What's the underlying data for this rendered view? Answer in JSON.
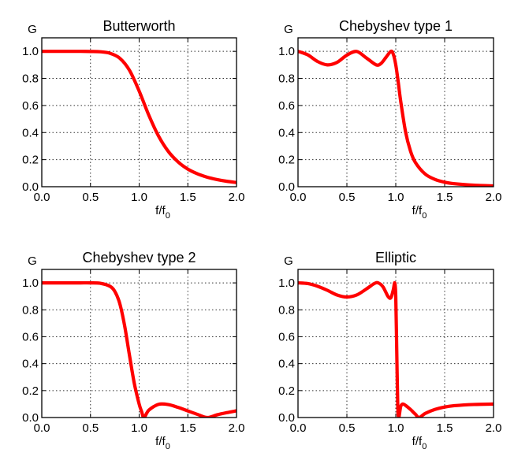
{
  "colors": {
    "curve": "#ff0000",
    "axes": "#000000",
    "grid": "#000000"
  },
  "chart_data": [
    {
      "type": "line",
      "title": "Butterworth",
      "xlabel": "f/f",
      "xlabel_sub": "0",
      "ylabel": "G",
      "xlim": [
        0,
        2.0
      ],
      "ylim": [
        0,
        1.1
      ],
      "grid": true,
      "linestyle": "dotted grid",
      "xticks": [
        "0.0",
        "0.5",
        "1.0",
        "1.5",
        "2.0"
      ],
      "yticks": [
        "0.0",
        "0.2",
        "0.4",
        "0.6",
        "0.8",
        "1.0"
      ],
      "x": [
        0,
        0.1,
        0.2,
        0.3,
        0.4,
        0.5,
        0.6,
        0.7,
        0.8,
        0.9,
        1.0,
        1.1,
        1.2,
        1.3,
        1.4,
        1.5,
        1.6,
        1.7,
        1.8,
        1.9,
        2.0
      ],
      "y": [
        1,
        1,
        1,
        1,
        1,
        0.999,
        0.997,
        0.986,
        0.95,
        0.861,
        0.707,
        0.527,
        0.373,
        0.26,
        0.183,
        0.13,
        0.095,
        0.07,
        0.053,
        0.04,
        0.031
      ]
    },
    {
      "type": "line",
      "title": "Chebyshev type 1",
      "xlabel": "f/f",
      "xlabel_sub": "0",
      "ylabel": "G",
      "xlim": [
        0,
        2.0
      ],
      "ylim": [
        0,
        1.1
      ],
      "grid": true,
      "xticks": [
        "0.0",
        "0.5",
        "1.0",
        "1.5",
        "2.0"
      ],
      "yticks": [
        "0.0",
        "0.2",
        "0.4",
        "0.6",
        "0.8",
        "1.0"
      ],
      "x": [
        0,
        0.1,
        0.2,
        0.3,
        0.4,
        0.5,
        0.6,
        0.7,
        0.8,
        0.85,
        0.9,
        0.95,
        0.975,
        1.0,
        1.025,
        1.05,
        1.1,
        1.15,
        1.2,
        1.3,
        1.4,
        1.5,
        1.6,
        1.8,
        2.0
      ],
      "y": [
        1,
        0.974,
        0.925,
        0.9,
        0.919,
        0.972,
        0.999,
        0.951,
        0.9,
        0.911,
        0.956,
        1.0,
        0.978,
        0.9,
        0.774,
        0.634,
        0.406,
        0.265,
        0.18,
        0.094,
        0.054,
        0.033,
        0.022,
        0.011,
        0.006
      ]
    },
    {
      "type": "line",
      "title": "Chebyshev type 2",
      "xlabel": "f/f",
      "xlabel_sub": "0",
      "ylabel": "G",
      "xlim": [
        0,
        2.0
      ],
      "ylim": [
        0,
        1.1
      ],
      "grid": true,
      "xticks": [
        "0.0",
        "0.5",
        "1.0",
        "1.5",
        "2.0"
      ],
      "yticks": [
        "0.0",
        "0.2",
        "0.4",
        "0.6",
        "0.8",
        "1.0"
      ],
      "x": [
        0,
        0.1,
        0.2,
        0.3,
        0.4,
        0.5,
        0.6,
        0.7,
        0.75,
        0.8,
        0.85,
        0.9,
        0.95,
        1.0,
        1.025,
        1.05,
        1.1,
        1.2,
        1.3,
        1.4,
        1.5,
        1.6,
        1.7,
        1.8,
        1.9,
        2.0
      ],
      "y": [
        1,
        1,
        1,
        1,
        1,
        1,
        0.997,
        0.975,
        0.937,
        0.849,
        0.685,
        0.465,
        0.254,
        0.1,
        0.045,
        0,
        0.055,
        0.098,
        0.096,
        0.075,
        0.049,
        0.023,
        0,
        0.02,
        0.036,
        0.05
      ]
    },
    {
      "type": "line",
      "title": "Elliptic",
      "xlabel": "f/f",
      "xlabel_sub": "0",
      "ylabel": "G",
      "xlim": [
        0,
        2.0
      ],
      "ylim": [
        0,
        1.1
      ],
      "grid": true,
      "xticks": [
        "0.0",
        "0.5",
        "1.0",
        "1.5",
        "2.0"
      ],
      "yticks": [
        "0.0",
        "0.2",
        "0.4",
        "0.6",
        "0.8",
        "1.0"
      ],
      "x": [
        0,
        0.1,
        0.2,
        0.3,
        0.4,
        0.5,
        0.6,
        0.7,
        0.78,
        0.82,
        0.87,
        0.92,
        0.95,
        0.975,
        0.99,
        1.0,
        1.01,
        1.02,
        1.03,
        1.05,
        1.07,
        1.1,
        1.15,
        1.2,
        1.24,
        1.3,
        1.4,
        1.5,
        1.6,
        1.8,
        2.0
      ],
      "y": [
        1,
        0.995,
        0.975,
        0.945,
        0.91,
        0.895,
        0.91,
        0.955,
        0.995,
        1.0,
        0.97,
        0.9,
        0.89,
        0.95,
        1.0,
        0.9,
        0.5,
        0.1,
        0,
        0.08,
        0.1,
        0.09,
        0.06,
        0.025,
        0,
        0.03,
        0.06,
        0.078,
        0.088,
        0.097,
        0.1
      ]
    }
  ]
}
